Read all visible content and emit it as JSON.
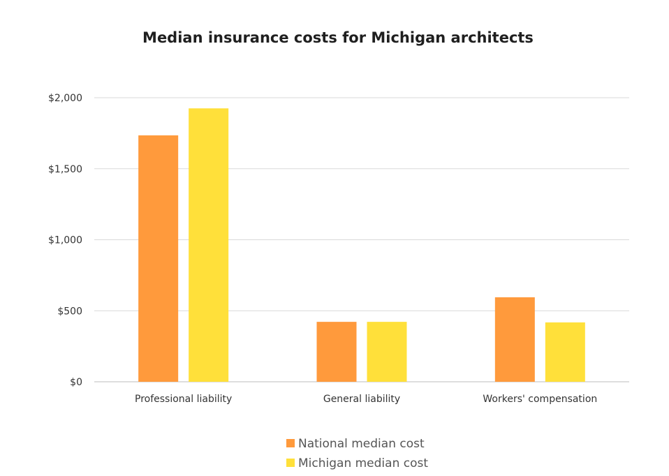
{
  "chart_data": {
    "type": "bar",
    "title": "Median insurance costs for Michigan architects",
    "categories": [
      "Professional liability",
      "General liability",
      "Workers' compensation"
    ],
    "series": [
      {
        "name": "National median cost",
        "color": "#ff9a3c",
        "values": [
          1735,
          422,
          595
        ]
      },
      {
        "name": "Michigan median cost",
        "color": "#ffe03a",
        "values": [
          1925,
          422,
          418
        ]
      }
    ],
    "ylim": [
      0,
      2000
    ],
    "yticks": [
      {
        "value": 0,
        "label": "$0"
      },
      {
        "value": 500,
        "label": "$500"
      },
      {
        "value": 1000,
        "label": "$1,000"
      },
      {
        "value": 1500,
        "label": "$1,500"
      },
      {
        "value": 2000,
        "label": "$2,000"
      }
    ],
    "grid": true,
    "legend_position": "bottom-center",
    "xlabel": "",
    "ylabel": ""
  }
}
